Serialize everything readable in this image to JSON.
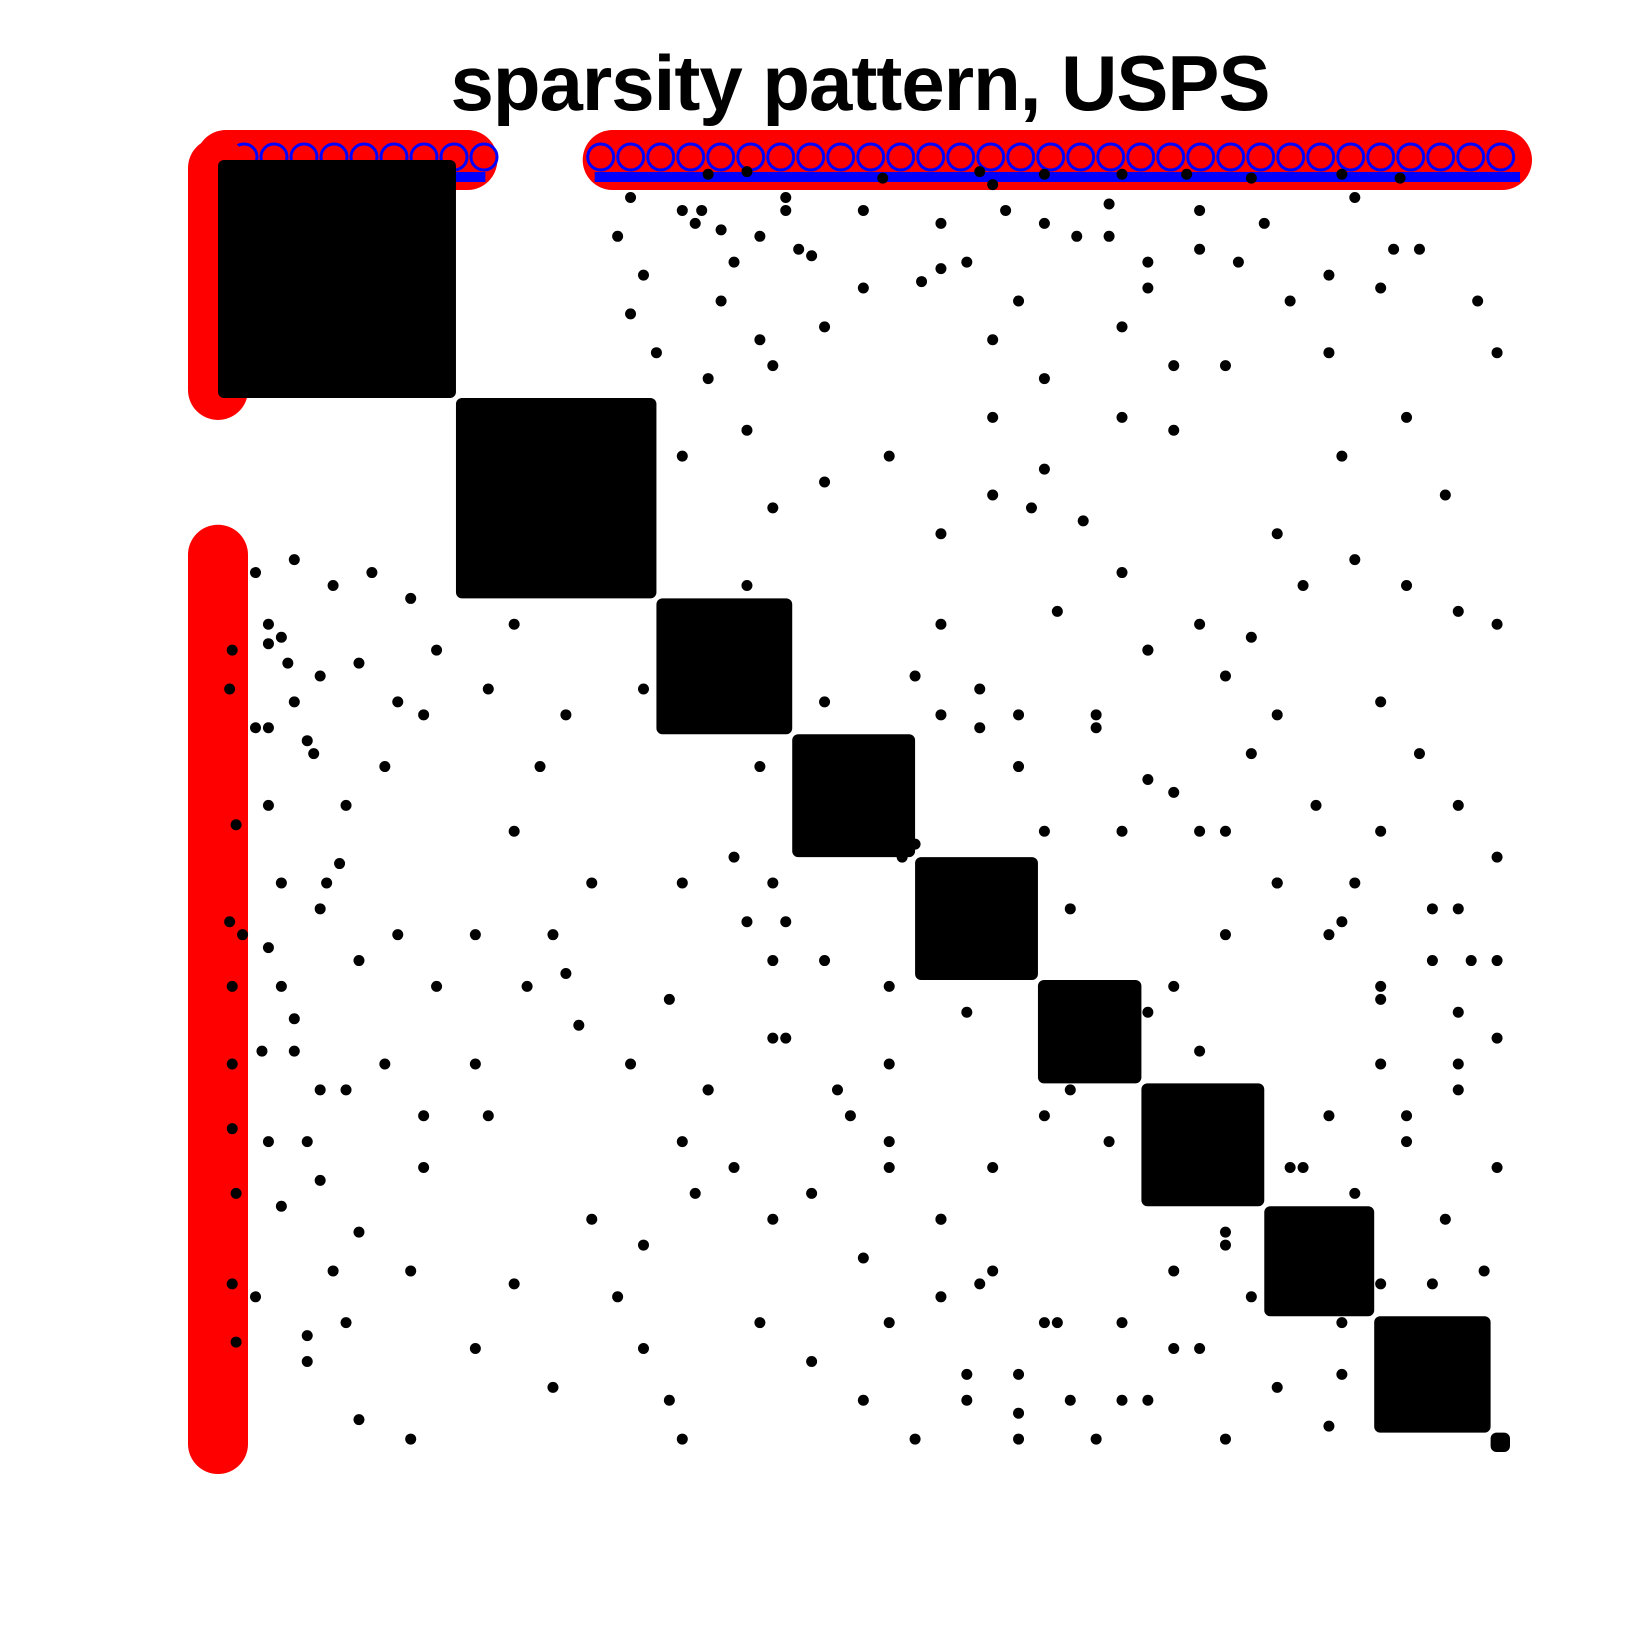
{
  "chart_data": {
    "type": "scatter",
    "title": "sparsity pattern, USPS",
    "xlabel": "",
    "ylabel": "",
    "grid": false,
    "axes_visible": false,
    "matrix_size": 1000,
    "y_axis_direction": "downward",
    "diagonal_blocks": [
      {
        "start": 1,
        "end": 185
      },
      {
        "start": 185,
        "end": 340
      },
      {
        "start": 340,
        "end": 445
      },
      {
        "start": 445,
        "end": 540
      },
      {
        "start": 540,
        "end": 635
      },
      {
        "start": 635,
        "end": 715
      },
      {
        "start": 715,
        "end": 810
      },
      {
        "start": 810,
        "end": 895
      },
      {
        "start": 895,
        "end": 985
      },
      {
        "start": 985,
        "end": 1000
      }
    ],
    "highlights": [
      {
        "name": "",
        "kind": "row-band",
        "row": 1,
        "col_start": 1,
        "col_end": 200,
        "color": "#ff0000",
        "accent": "#0000ff"
      },
      {
        "name": "",
        "kind": "row-band",
        "row": 1,
        "col_start": 300,
        "col_end": 1000,
        "color": "#ff0000",
        "accent": "#0000ff"
      },
      {
        "name": "",
        "kind": "col-band",
        "col": 1,
        "row_start": 1,
        "row_end": 185,
        "color": "#ff0000"
      },
      {
        "name": "",
        "kind": "col-band",
        "col": 1,
        "row_start": 300,
        "row_end": 1000,
        "color": "#ff0000"
      }
    ],
    "offdiagonal_points": [
      [
        380,
        12
      ],
      [
        410,
        10
      ],
      [
        515,
        15
      ],
      [
        590,
        10
      ],
      [
        640,
        12
      ],
      [
        700,
        12
      ],
      [
        750,
        12
      ],
      [
        800,
        15
      ],
      [
        870,
        12
      ],
      [
        915,
        15
      ],
      [
        360,
        40
      ],
      [
        375,
        40
      ],
      [
        390,
        55
      ],
      [
        420,
        60
      ],
      [
        440,
        40
      ],
      [
        460,
        75
      ],
      [
        500,
        40
      ],
      [
        545,
        95
      ],
      [
        560,
        85
      ],
      [
        610,
        40
      ],
      [
        640,
        50
      ],
      [
        665,
        60
      ],
      [
        690,
        35
      ],
      [
        720,
        80
      ],
      [
        760,
        70
      ],
      [
        810,
        50
      ],
      [
        860,
        90
      ],
      [
        900,
        100
      ],
      [
        930,
        70
      ],
      [
        975,
        110
      ],
      [
        360,
        230
      ],
      [
        380,
        170
      ],
      [
        410,
        210
      ],
      [
        430,
        270
      ],
      [
        470,
        250
      ],
      [
        520,
        230
      ],
      [
        560,
        290
      ],
      [
        600,
        260
      ],
      [
        630,
        270
      ],
      [
        700,
        200
      ],
      [
        740,
        210
      ],
      [
        780,
        160
      ],
      [
        820,
        290
      ],
      [
        870,
        230
      ],
      [
        920,
        200
      ],
      [
        950,
        260
      ],
      [
        990,
        150
      ],
      [
        30,
        320
      ],
      [
        60,
        310
      ],
      [
        90,
        330
      ],
      [
        120,
        320
      ],
      [
        150,
        340
      ],
      [
        50,
        370
      ],
      [
        80,
        400
      ],
      [
        110,
        390
      ],
      [
        140,
        420
      ],
      [
        30,
        440
      ],
      [
        70,
        450
      ],
      [
        100,
        500
      ],
      [
        130,
        470
      ],
      [
        160,
        430
      ],
      [
        300,
        330
      ],
      [
        330,
        410
      ],
      [
        370,
        440
      ],
      [
        420,
        470
      ],
      [
        460,
        480
      ],
      [
        500,
        520
      ],
      [
        540,
        530
      ],
      [
        560,
        430
      ],
      [
        590,
        410
      ],
      [
        620,
        430
      ],
      [
        680,
        430
      ],
      [
        720,
        380
      ],
      [
        760,
        360
      ],
      [
        800,
        370
      ],
      [
        840,
        330
      ],
      [
        880,
        310
      ],
      [
        920,
        330
      ],
      [
        960,
        350
      ],
      [
        990,
        360
      ],
      [
        20,
        600
      ],
      [
        50,
        560
      ],
      [
        80,
        580
      ],
      [
        110,
        620
      ],
      [
        140,
        600
      ],
      [
        170,
        640
      ],
      [
        60,
        690
      ],
      [
        100,
        720
      ],
      [
        130,
        700
      ],
      [
        160,
        740
      ],
      [
        40,
        760
      ],
      [
        80,
        790
      ],
      [
        110,
        830
      ],
      [
        150,
        860
      ],
      [
        30,
        880
      ],
      [
        70,
        910
      ],
      [
        200,
        600
      ],
      [
        240,
        640
      ],
      [
        280,
        670
      ],
      [
        320,
        700
      ],
      [
        350,
        650
      ],
      [
        380,
        720
      ],
      [
        400,
        780
      ],
      [
        430,
        820
      ],
      [
        460,
        800
      ],
      [
        500,
        850
      ],
      [
        520,
        900
      ],
      [
        560,
        880
      ],
      [
        590,
        870
      ],
      [
        620,
        940
      ],
      [
        650,
        900
      ],
      [
        700,
        960
      ],
      [
        740,
        920
      ],
      [
        780,
        990
      ],
      [
        820,
        950
      ],
      [
        860,
        980
      ],
      [
        900,
        920
      ],
      [
        940,
        870
      ],
      [
        980,
        910
      ],
      [
        360,
        560
      ],
      [
        400,
        540
      ],
      [
        440,
        590
      ],
      [
        470,
        620
      ],
      [
        520,
        640
      ],
      [
        580,
        600
      ],
      [
        620,
        560
      ],
      [
        660,
        580
      ],
      [
        700,
        520
      ],
      [
        740,
        490
      ],
      [
        780,
        520
      ],
      [
        820,
        560
      ],
      [
        860,
        600
      ],
      [
        900,
        640
      ],
      [
        940,
        580
      ],
      [
        970,
        620
      ],
      [
        990,
        680
      ],
      [
        960,
        720
      ],
      [
        920,
        760
      ],
      [
        880,
        800
      ],
      [
        840,
        780
      ],
      [
        800,
        740
      ],
      [
        760,
        690
      ],
      [
        720,
        660
      ],
      [
        680,
        700
      ],
      [
        640,
        740
      ],
      [
        600,
        780
      ],
      [
        560,
        820
      ],
      [
        520,
        760
      ],
      [
        480,
        720
      ],
      [
        440,
        680
      ],
      [
        420,
        900
      ],
      [
        460,
        930
      ],
      [
        500,
        960
      ],
      [
        540,
        990
      ],
      [
        580,
        960
      ],
      [
        620,
        990
      ],
      [
        660,
        960
      ],
      [
        700,
        900
      ],
      [
        740,
        860
      ],
      [
        780,
        830
      ],
      [
        820,
        860
      ],
      [
        860,
        830
      ],
      [
        900,
        870
      ],
      [
        940,
        960
      ]
    ]
  }
}
